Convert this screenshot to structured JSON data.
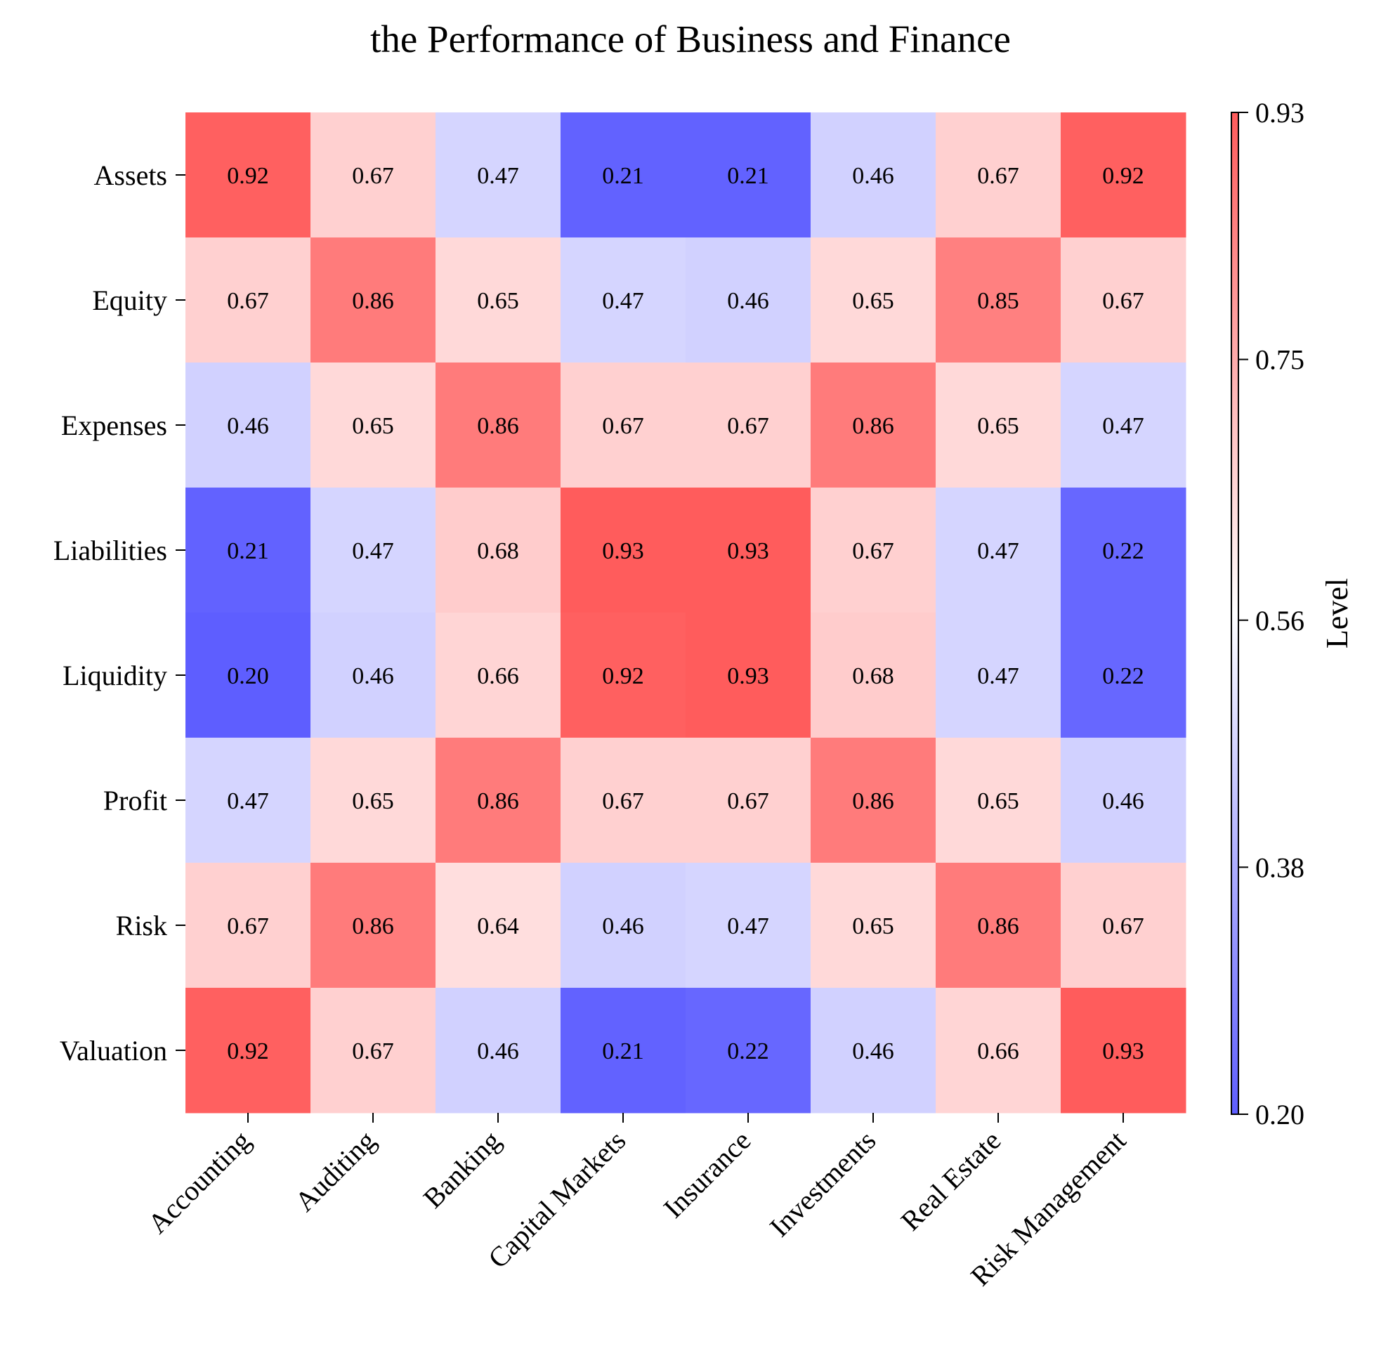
{
  "chart_data": {
    "type": "heatmap",
    "title": "the Performance of Business and Finance",
    "x_categories": [
      "Accounting",
      "Auditing",
      "Banking",
      "Capital Markets",
      "Insurance",
      "Investments",
      "Real Estate",
      "Risk Management"
    ],
    "y_categories": [
      "Assets",
      "Equity",
      "Expenses",
      "Liabilities",
      "Liquidity",
      "Profit",
      "Risk",
      "Valuation"
    ],
    "values": [
      [
        0.92,
        0.67,
        0.47,
        0.21,
        0.21,
        0.46,
        0.67,
        0.92
      ],
      [
        0.67,
        0.86,
        0.65,
        0.47,
        0.46,
        0.65,
        0.85,
        0.67
      ],
      [
        0.46,
        0.65,
        0.86,
        0.67,
        0.67,
        0.86,
        0.65,
        0.47
      ],
      [
        0.21,
        0.47,
        0.68,
        0.93,
        0.93,
        0.67,
        0.47,
        0.22
      ],
      [
        0.2,
        0.46,
        0.66,
        0.92,
        0.93,
        0.68,
        0.47,
        0.22
      ],
      [
        0.47,
        0.65,
        0.86,
        0.67,
        0.67,
        0.86,
        0.65,
        0.46
      ],
      [
        0.67,
        0.86,
        0.64,
        0.46,
        0.47,
        0.65,
        0.86,
        0.67
      ],
      [
        0.92,
        0.67,
        0.46,
        0.21,
        0.22,
        0.46,
        0.66,
        0.93
      ]
    ],
    "value_labels": [
      [
        "0.92",
        "0.67",
        "0.47",
        "0.21",
        "0.21",
        "0.46",
        "0.67",
        "0.92"
      ],
      [
        "0.67",
        "0.86",
        "0.65",
        "0.47",
        "0.46",
        "0.65",
        "0.85",
        "0.67"
      ],
      [
        "0.46",
        "0.65",
        "0.86",
        "0.67",
        "0.67",
        "0.86",
        "0.65",
        "0.47"
      ],
      [
        "0.21",
        "0.47",
        "0.68",
        "0.93",
        "0.93",
        "0.67",
        "0.47",
        "0.22"
      ],
      [
        "0.20",
        "0.46",
        "0.66",
        "0.92",
        "0.93",
        "0.68",
        "0.47",
        "0.22"
      ],
      [
        "0.47",
        "0.65",
        "0.86",
        "0.67",
        "0.67",
        "0.86",
        "0.65",
        "0.46"
      ],
      [
        "0.67",
        "0.86",
        "0.64",
        "0.46",
        "0.47",
        "0.65",
        "0.86",
        "0.67"
      ],
      [
        "0.92",
        "0.67",
        "0.46",
        "0.21",
        "0.22",
        "0.46",
        "0.66",
        "0.93"
      ]
    ],
    "colorbar": {
      "label": "Level",
      "range": [
        0.2,
        0.93
      ],
      "ticks": [
        0.2,
        0.38,
        0.56,
        0.75,
        0.93
      ],
      "tick_labels": [
        "0.20",
        "0.38",
        "0.56",
        "0.75",
        "0.93"
      ],
      "palette": [
        "#5e5eff",
        "#ffffff",
        "#ff5c5c"
      ]
    }
  }
}
